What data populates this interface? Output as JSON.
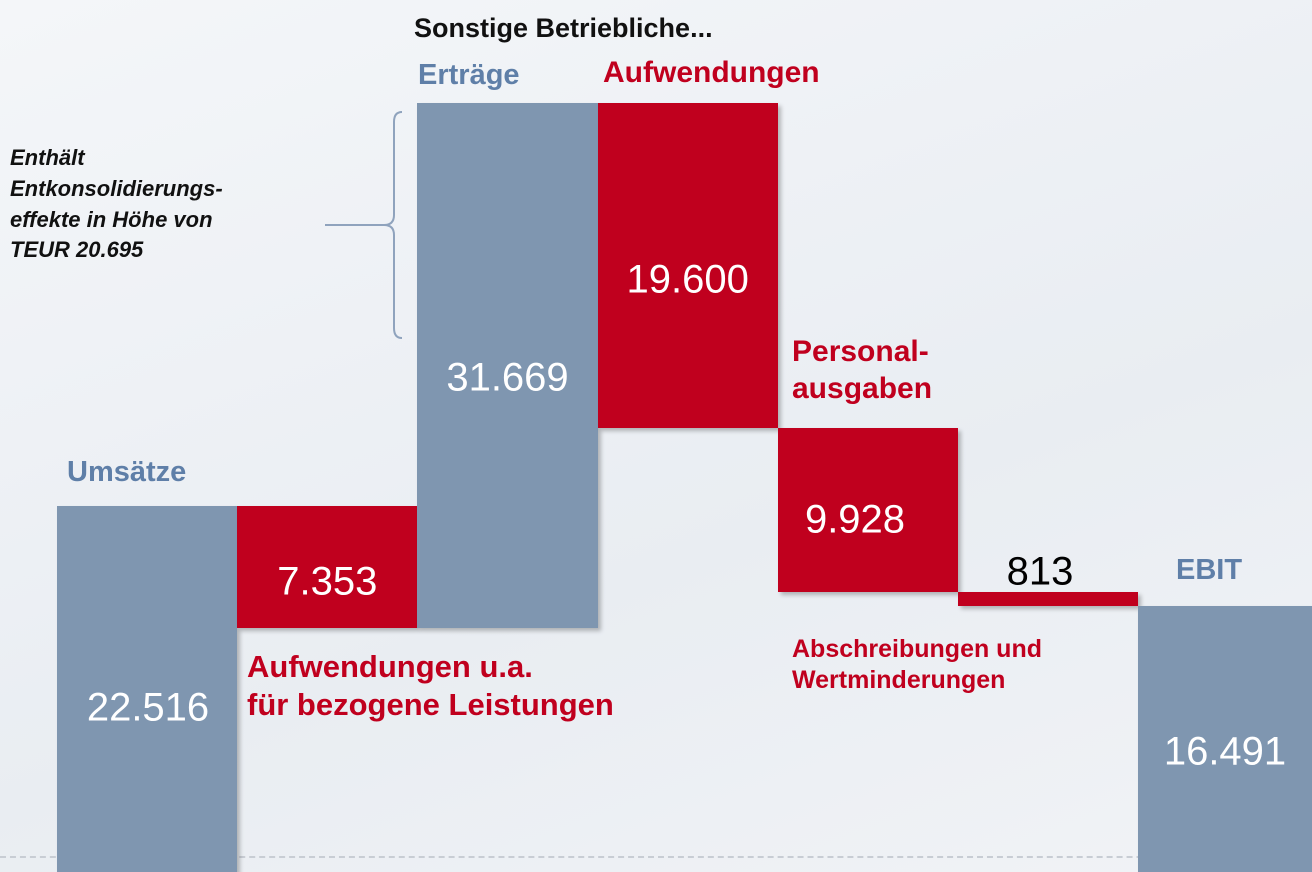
{
  "chart_data": {
    "type": "waterfall",
    "group_label": "Sonstige Betriebliche...",
    "annotation": "Enthält\nEntkonsolidierungs-\neffekte in Höhe von\nTEUR 20.695",
    "categories": [
      "Umsätze",
      "Aufwendungen u.a.\nfür bezogene Leistungen",
      "Erträge",
      "Aufwendungen",
      "Personal-\nausgaben",
      "Abschreibungen und\nWertminderungen",
      "EBIT"
    ],
    "measures": [
      "absolute",
      "relative",
      "relative",
      "relative",
      "relative",
      "relative",
      "total"
    ],
    "values": [
      22516,
      -7353,
      31669,
      -19600,
      -9928,
      -813,
      16491
    ],
    "value_labels": [
      "22.516",
      "7.353",
      "31.669",
      "19.600",
      "9.928",
      "813",
      "16.491"
    ],
    "colors": [
      "#7f96b0",
      "#c0001e",
      "#7f96b0",
      "#c0001e",
      "#c0001e",
      "#c0001e",
      "#7f96b0"
    ]
  }
}
